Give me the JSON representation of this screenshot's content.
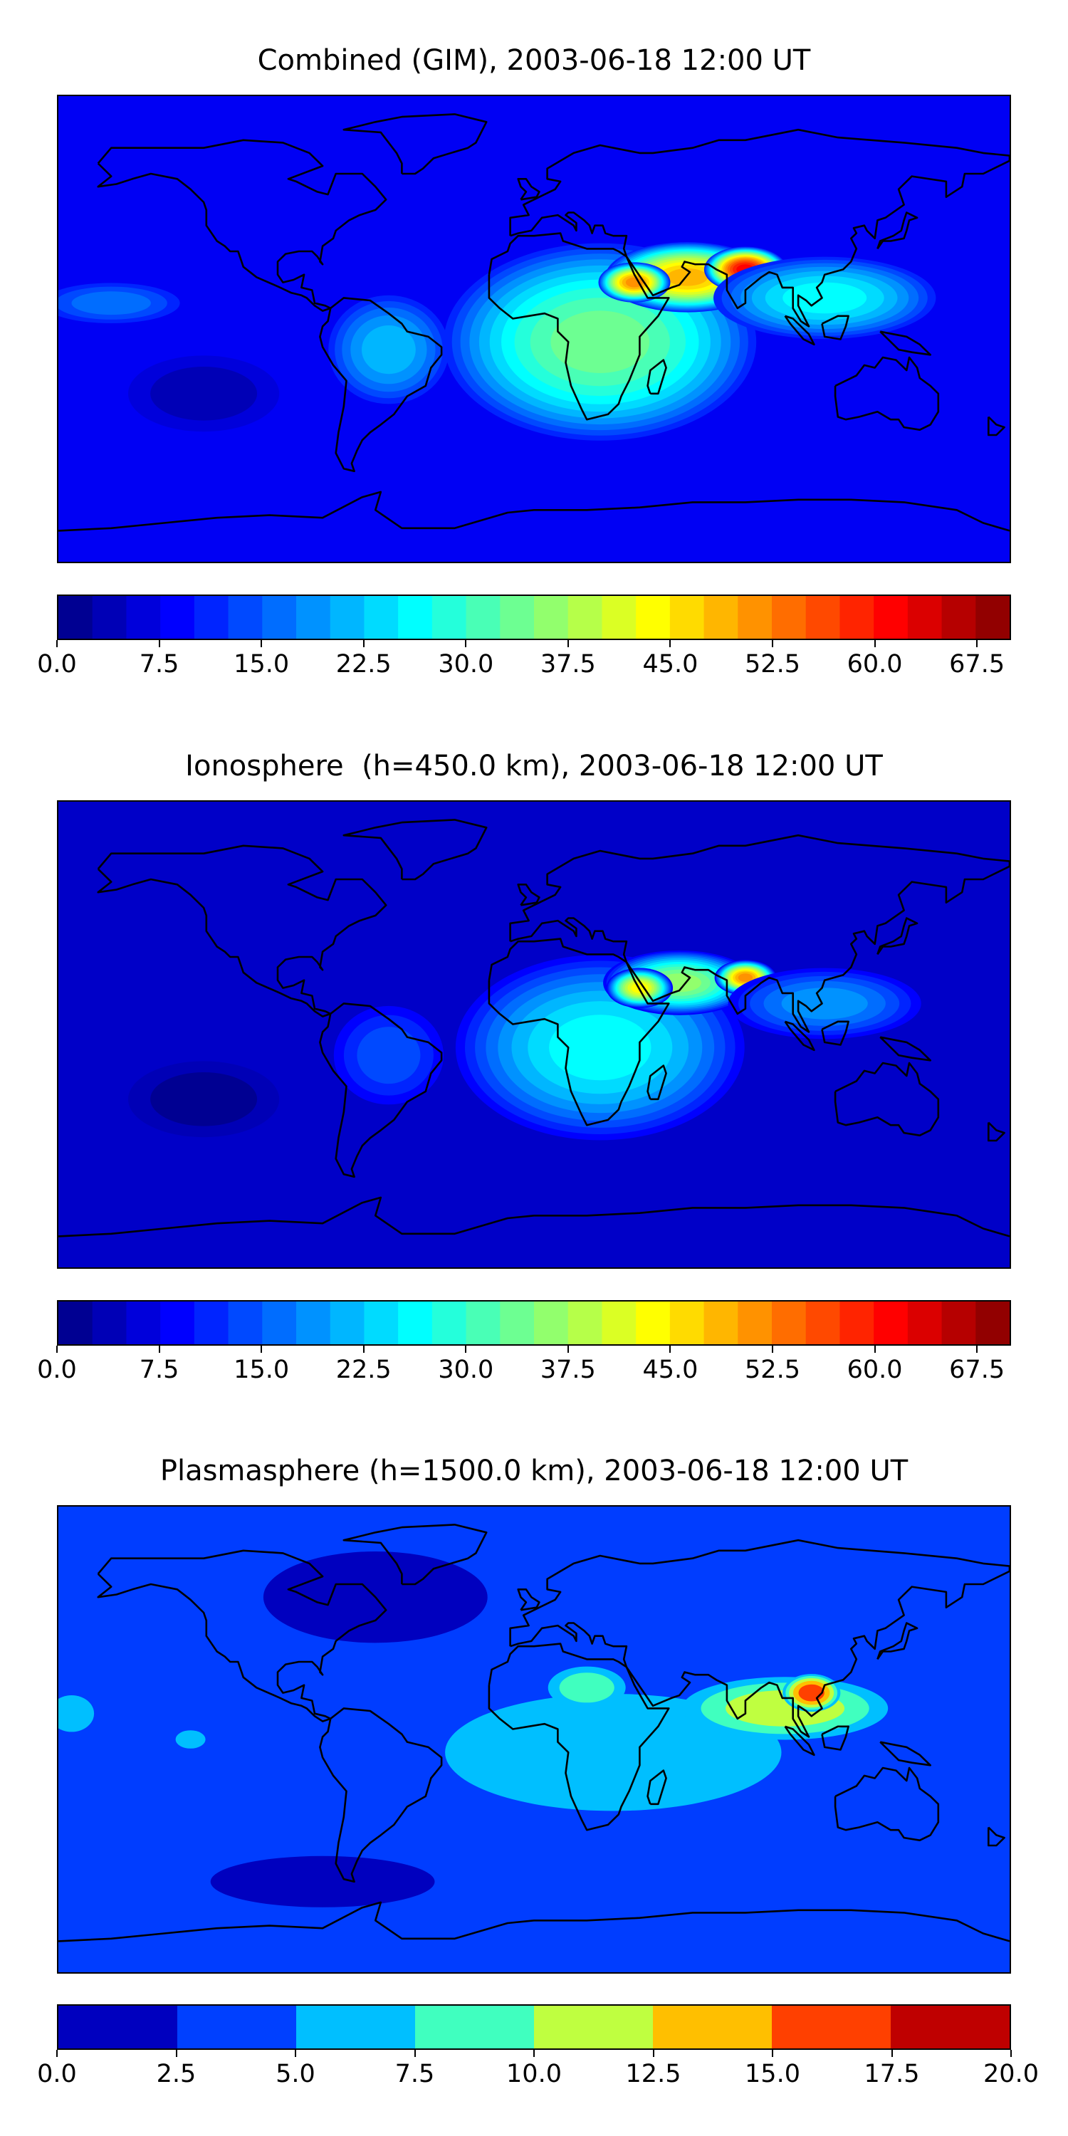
{
  "chart_data": [
    {
      "type": "heatmap",
      "subtype": "filled-contour world map (TEC)",
      "title": "Combined (GIM), 2003-06-18 12:00 UT",
      "xlabel": "",
      "ylabel": "",
      "colormap": "jet",
      "colorbar_range": [
        0,
        70
      ],
      "colorbar_levels": [
        0.0,
        2.5,
        5.0,
        7.5,
        10.0,
        12.5,
        15.0,
        17.5,
        20.0,
        22.5,
        25.0,
        27.5,
        30.0,
        32.5,
        35.0,
        37.5,
        40.0,
        42.5,
        45.0,
        47.5,
        50.0,
        52.5,
        55.0,
        57.5,
        60.0,
        62.5,
        65.0,
        67.5,
        70.0
      ],
      "colorbar_tick_labels": [
        "0.0",
        "7.5",
        "15.0",
        "22.5",
        "30.0",
        "37.5",
        "45.0",
        "52.5",
        "60.0",
        "67.5"
      ],
      "colorbar_tick_values": [
        0.0,
        7.5,
        15.0,
        22.5,
        30.0,
        37.5,
        45.0,
        52.5,
        60.0,
        67.5
      ],
      "background_value": 8,
      "features": [
        {
          "lon": 25,
          "lat": -5,
          "value": 34,
          "rx": 62,
          "ry": 40
        },
        {
          "lon": 58,
          "lat": 20,
          "value": 48,
          "rx": 32,
          "ry": 14
        },
        {
          "lon": 80,
          "lat": 23,
          "value": 62,
          "rx": 16,
          "ry": 9
        },
        {
          "lon": 38,
          "lat": 18,
          "value": 50,
          "rx": 14,
          "ry": 8
        },
        {
          "lon": 110,
          "lat": 12,
          "value": 26,
          "rx": 45,
          "ry": 17
        },
        {
          "lon": -55,
          "lat": -8,
          "value": 20,
          "rx": 25,
          "ry": 23
        },
        {
          "lon": -160,
          "lat": 10,
          "value": 16,
          "rx": 30,
          "ry": 9
        },
        {
          "lon": -125,
          "lat": -25,
          "value": 3,
          "rx": 35,
          "ry": 18
        }
      ]
    },
    {
      "type": "heatmap",
      "subtype": "filled-contour world map (TEC)",
      "title": "Ionosphere  (h=450.0 km), 2003-06-18 12:00 UT",
      "xlabel": "",
      "ylabel": "",
      "colormap": "jet",
      "colorbar_range": [
        0,
        70
      ],
      "colorbar_levels": [
        0.0,
        2.5,
        5.0,
        7.5,
        10.0,
        12.5,
        15.0,
        17.5,
        20.0,
        22.5,
        25.0,
        27.5,
        30.0,
        32.5,
        35.0,
        37.5,
        40.0,
        42.5,
        45.0,
        47.5,
        50.0,
        52.5,
        55.0,
        57.5,
        60.0,
        62.5,
        65.0,
        67.5,
        70.0
      ],
      "colorbar_tick_labels": [
        "0.0",
        "7.5",
        "15.0",
        "22.5",
        "30.0",
        "37.5",
        "45.0",
        "52.5",
        "60.0",
        "67.5"
      ],
      "colorbar_tick_values": [
        0.0,
        7.5,
        15.0,
        22.5,
        30.0,
        37.5,
        45.0,
        52.5,
        60.0,
        67.5
      ],
      "background_value": 5,
      "features": [
        {
          "lon": 25,
          "lat": -5,
          "value": 26,
          "rx": 58,
          "ry": 38
        },
        {
          "lon": 55,
          "lat": 20,
          "value": 36,
          "rx": 30,
          "ry": 13
        },
        {
          "lon": 80,
          "lat": 22,
          "value": 50,
          "rx": 12,
          "ry": 7
        },
        {
          "lon": 40,
          "lat": 18,
          "value": 44,
          "rx": 13,
          "ry": 8
        },
        {
          "lon": 110,
          "lat": 12,
          "value": 18,
          "rx": 40,
          "ry": 15
        },
        {
          "lon": -55,
          "lat": -8,
          "value": 14,
          "rx": 24,
          "ry": 22
        },
        {
          "lon": -125,
          "lat": -25,
          "value": 2,
          "rx": 35,
          "ry": 18
        }
      ]
    },
    {
      "type": "heatmap",
      "subtype": "filled-contour world map (TEC)",
      "title": "Plasmasphere (h=1500.0 km), 2003-06-18 12:00 UT",
      "xlabel": "",
      "ylabel": "",
      "colormap": "jet",
      "colorbar_range": [
        0,
        20
      ],
      "colorbar_levels": [
        0.0,
        2.5,
        5.0,
        7.5,
        10.0,
        12.5,
        15.0,
        17.5,
        20.0
      ],
      "colorbar_tick_labels": [
        "0.0",
        "2.5",
        "5.0",
        "7.5",
        "10.0",
        "12.5",
        "15.0",
        "17.5",
        "20.0"
      ],
      "colorbar_tick_values": [
        0.0,
        2.5,
        5.0,
        7.5,
        10.0,
        12.5,
        15.0,
        17.5,
        20.0
      ],
      "background_value": 3.7,
      "features": [
        {
          "lon": 30,
          "lat": -5,
          "value": 6.5,
          "rx": 90,
          "ry": 32
        },
        {
          "lon": 95,
          "lat": 12,
          "value": 12,
          "rx": 45,
          "ry": 14
        },
        {
          "lon": 105,
          "lat": 18,
          "value": 16.5,
          "rx": 12,
          "ry": 8
        },
        {
          "lon": 20,
          "lat": 20,
          "value": 9,
          "rx": 18,
          "ry": 10
        },
        {
          "lon": -175,
          "lat": 10,
          "value": 7,
          "rx": 12,
          "ry": 10
        },
        {
          "lon": -130,
          "lat": 0,
          "value": 7,
          "rx": 8,
          "ry": 5
        },
        {
          "lon": -60,
          "lat": 55,
          "value": 1.5,
          "rx": 60,
          "ry": 25
        },
        {
          "lon": -80,
          "lat": -55,
          "value": 1.5,
          "rx": 60,
          "ry": 14
        }
      ]
    }
  ]
}
